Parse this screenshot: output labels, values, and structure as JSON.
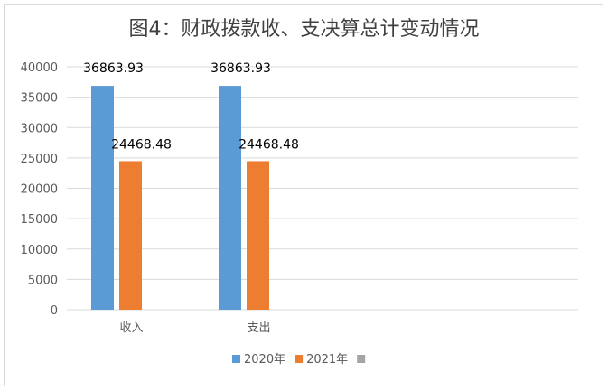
{
  "chart_data": {
    "type": "bar",
    "title": "图4：财政拨款收、支决算总计变动情况",
    "categories": [
      "收入",
      "支出"
    ],
    "series": [
      {
        "name": "2020年",
        "color": "#5b9bd5",
        "values": [
          36863.93,
          36863.93
        ],
        "labels": [
          "36863.93",
          "36863.93"
        ]
      },
      {
        "name": "2021年",
        "color": "#ed7d31",
        "values": [
          24468.48,
          24468.48
        ],
        "labels": [
          "24468.48",
          "24468.48"
        ]
      },
      {
        "name": "",
        "color": "#a5a5a5",
        "values": [
          null,
          null
        ],
        "labels": [
          "",
          ""
        ]
      }
    ],
    "ylim": [
      0,
      40000
    ],
    "yticks": [
      "0",
      "5000",
      "10000",
      "15000",
      "20000",
      "25000",
      "30000",
      "35000",
      "40000"
    ],
    "grid": true,
    "legend": "bottom"
  }
}
